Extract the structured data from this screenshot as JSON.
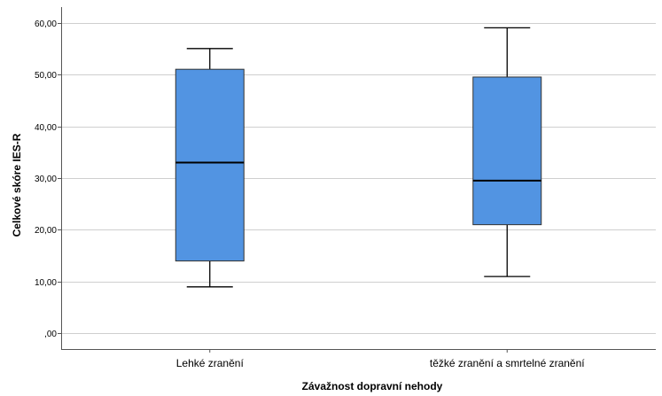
{
  "chart_data": {
    "type": "boxplot",
    "xlabel": "Závažnost dopravní nehody",
    "ylabel": "Celkové skóre IES-R",
    "categories": [
      "Lehké zranění",
      "těžké zranění a smrtelné zranění"
    ],
    "boxes": [
      {
        "whisker_low": 9,
        "q1": 14,
        "median": 33,
        "q3": 51,
        "whisker_high": 55
      },
      {
        "whisker_low": 11,
        "q1": 21,
        "median": 29.5,
        "q3": 49.5,
        "whisker_high": 59
      }
    ],
    "ylim": [
      -3,
      63
    ],
    "yticks": [
      0,
      10,
      20,
      30,
      40,
      50,
      60
    ],
    "ytick_labels": [
      ",00",
      "10,00",
      "20,00",
      "30,00",
      "40,00",
      "50,00",
      "60,00"
    ],
    "grid": true,
    "box_color": "#5294e2"
  }
}
